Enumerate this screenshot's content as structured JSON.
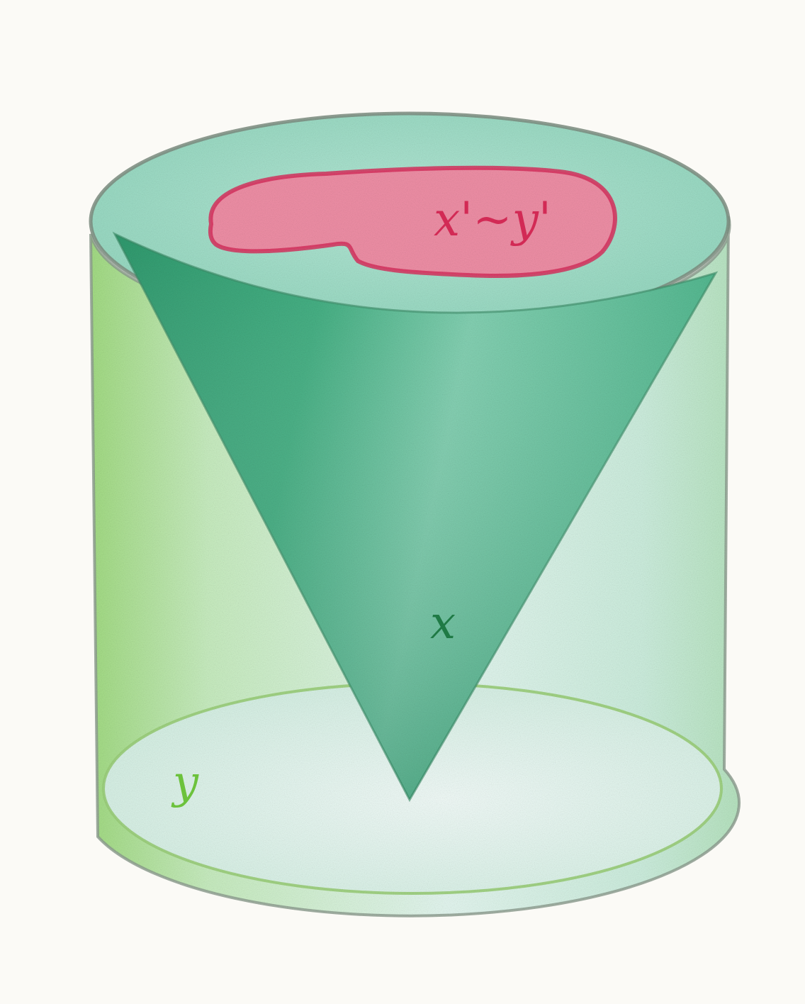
{
  "diagram": {
    "labels": {
      "region": "x'~y'",
      "cone": "x",
      "cylinder": "y"
    },
    "colors": {
      "paper": "#fbfaf6",
      "cylinder_fill": "#cfeedd",
      "cylinder_side_tint": "#a8e08a",
      "cylinder_outline": "#8a9a8c",
      "top_disk": "#a9e2cf",
      "cone_light": "#8fd4b5",
      "cone_dark": "#2f9a6e",
      "region_fill": "#ef8fa6",
      "region_outline": "#d8335f",
      "region_text": "#d22a55",
      "cone_text": "#1f7a45",
      "cylinder_text": "#6cc23c"
    }
  }
}
